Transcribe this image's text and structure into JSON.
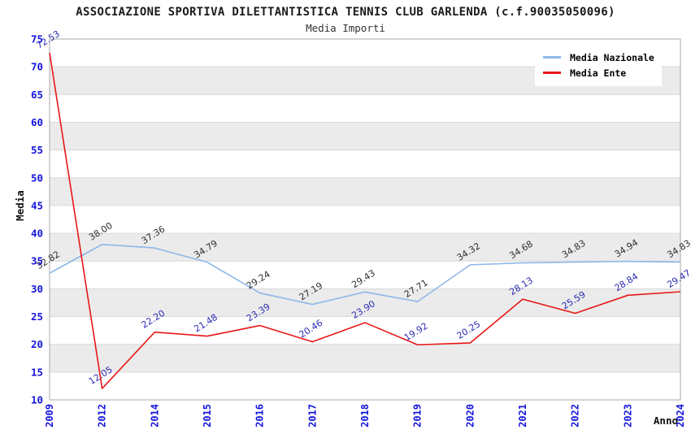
{
  "title": "ASSOCIAZIONE SPORTIVA DILETTANTISTICA TENNIS CLUB GARLENDA (c.f.90035050096)",
  "subtitle": "Media Importi",
  "chart_data": {
    "type": "line",
    "title": "ASSOCIAZIONE SPORTIVA DILETTANTISTICA TENNIS CLUB GARLENDA (c.f.90035050096)",
    "subtitle": "Media Importi",
    "xlabel": "Anno",
    "ylabel": "Media",
    "categories": [
      "2009",
      "2012",
      "2014",
      "2015",
      "2016",
      "2017",
      "2018",
      "2019",
      "2020",
      "2021",
      "2022",
      "2023",
      "2024"
    ],
    "series": [
      {
        "name": "Media Nazionale",
        "color": "#8cb8e6",
        "label_color": "#2e2e2e",
        "values": [
          32.82,
          38.0,
          37.36,
          34.79,
          29.24,
          27.19,
          29.43,
          27.71,
          34.32,
          34.68,
          34.83,
          34.94,
          34.83
        ]
      },
      {
        "name": "Media Ente",
        "color": "#e81717",
        "label_color": "#2b2bb3",
        "values": [
          72.53,
          12.05,
          22.2,
          21.48,
          23.39,
          20.46,
          23.9,
          19.92,
          20.25,
          28.13,
          25.59,
          28.84,
          29.47
        ]
      }
    ],
    "ylim": [
      10,
      75
    ],
    "y_tick_step": 5,
    "grid": "horizontal-bands-alternating",
    "legend_position": "top-right",
    "data_labels": "shown, rotated, two decimals"
  },
  "colors": {
    "background": "#ffffff",
    "band": "#ebebeb",
    "grid_line": "#d9d9d9",
    "plot_border": "#aaaaaa",
    "tick_label": "#1515dd"
  }
}
